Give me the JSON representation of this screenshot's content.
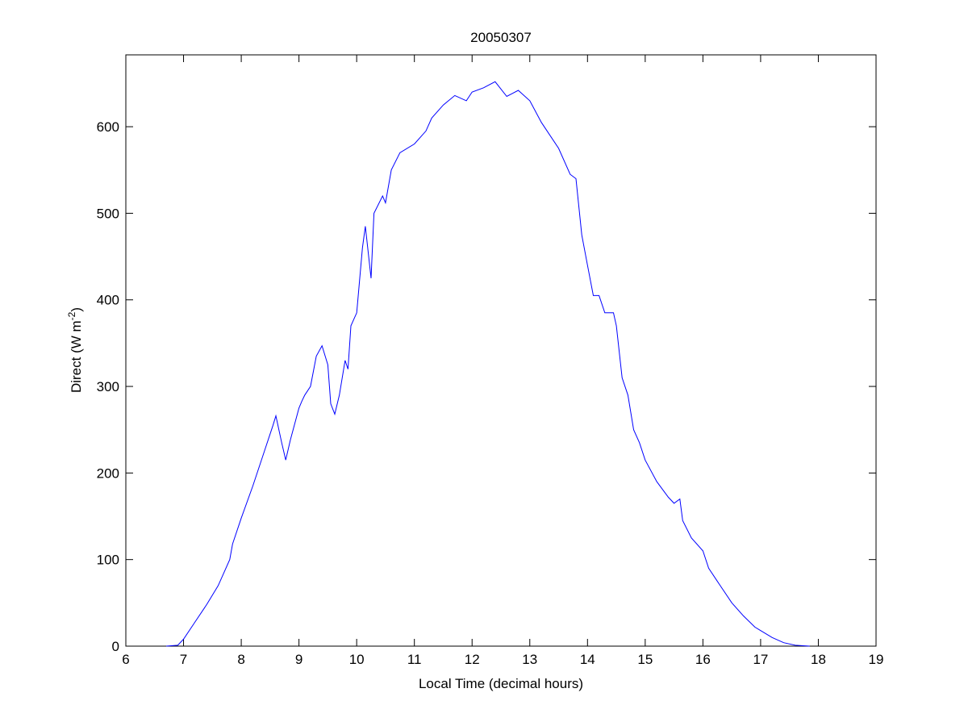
{
  "chart_data": {
    "type": "line",
    "title": "20050307",
    "xlabel": "Local Time (decimal hours)",
    "ylabel": "Direct (W m",
    "ylabel_superscript": "-2",
    "ylabel_suffix": ")",
    "xlim": [
      6,
      19
    ],
    "ylim": [
      0,
      683
    ],
    "xticks": [
      6,
      7,
      8,
      9,
      10,
      11,
      12,
      13,
      14,
      15,
      16,
      17,
      18,
      19
    ],
    "yticks": [
      0,
      100,
      200,
      300,
      400,
      500,
      600
    ],
    "grid": false,
    "series": [
      {
        "name": "Direct",
        "color": "#0000ff",
        "x": [
          6.7,
          6.9,
          7.0,
          7.2,
          7.4,
          7.6,
          7.8,
          7.85,
          8.0,
          8.2,
          8.4,
          8.55,
          8.6,
          8.7,
          8.77,
          8.85,
          9.0,
          9.05,
          9.1,
          9.2,
          9.3,
          9.4,
          9.5,
          9.55,
          9.62,
          9.7,
          9.8,
          9.85,
          9.9,
          10.0,
          10.1,
          10.15,
          10.25,
          10.3,
          10.45,
          10.5,
          10.6,
          10.75,
          11.0,
          11.2,
          11.3,
          11.5,
          11.7,
          11.9,
          12.0,
          12.2,
          12.4,
          12.6,
          12.8,
          13.0,
          13.2,
          13.5,
          13.7,
          13.8,
          13.9,
          14.0,
          14.1,
          14.2,
          14.3,
          14.45,
          14.5,
          14.6,
          14.7,
          14.8,
          14.9,
          15.0,
          15.2,
          15.4,
          15.5,
          15.6,
          15.65,
          15.8,
          16.0,
          16.1,
          16.3,
          16.5,
          16.7,
          16.9,
          17.0,
          17.2,
          17.4,
          17.6,
          17.85
        ],
        "y": [
          0,
          1,
          8,
          28,
          48,
          70,
          100,
          118,
          148,
          185,
          225,
          255,
          266,
          235,
          215,
          238,
          275,
          283,
          290,
          300,
          335,
          347,
          325,
          280,
          268,
          290,
          330,
          320,
          370,
          385,
          460,
          485,
          425,
          500,
          520,
          512,
          550,
          570,
          580,
          595,
          610,
          625,
          636,
          630,
          640,
          645,
          652,
          635,
          642,
          630,
          605,
          575,
          545,
          540,
          475,
          440,
          405,
          405,
          385,
          385,
          370,
          310,
          290,
          250,
          235,
          215,
          190,
          172,
          165,
          170,
          145,
          125,
          110,
          90,
          70,
          50,
          35,
          22,
          18,
          10,
          4,
          1,
          0
        ]
      }
    ]
  }
}
